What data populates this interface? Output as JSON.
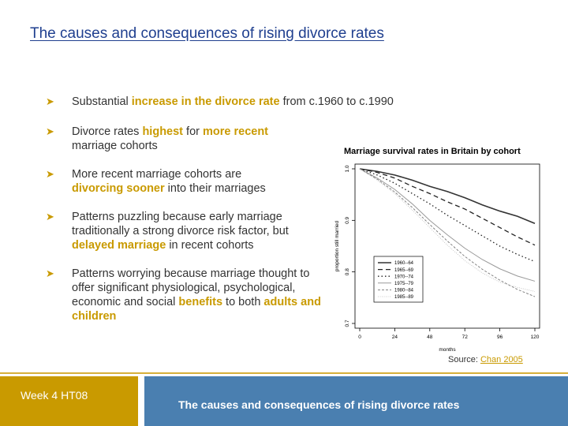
{
  "slide": {
    "title": "The causes and consequences of rising divorce rates"
  },
  "bullets": [
    {
      "icon": "arrow-bullet-icon",
      "parts": [
        {
          "text": "Substantial ",
          "hl": false
        },
        {
          "text": "increase in the divorce rate",
          "hl": true
        },
        {
          "text": " from c.1960 to c.1990",
          "hl": false
        }
      ]
    },
    {
      "icon": "arrow-bullet-icon",
      "parts": [
        {
          "text": "Divorce rates ",
          "hl": false
        },
        {
          "text": "highest",
          "hl": true
        },
        {
          "text": " for ",
          "hl": false
        },
        {
          "text": "more recent",
          "hl": true
        },
        {
          "text": " marriage cohorts",
          "hl": false
        }
      ]
    },
    {
      "icon": "arrow-bullet-icon",
      "parts": [
        {
          "text": "More recent marriage cohorts are ",
          "hl": false
        },
        {
          "text": "divorcing sooner",
          "hl": true
        },
        {
          "text": " into their marriages",
          "hl": false
        }
      ]
    },
    {
      "icon": "arrow-bullet-icon",
      "parts": [
        {
          "text": "Patterns puzzling because early marriage traditionally a strong divorce risk factor, but ",
          "hl": false
        },
        {
          "text": "delayed marriage",
          "hl": true
        },
        {
          "text": " in recent cohorts",
          "hl": false
        }
      ]
    },
    {
      "icon": "arrow-bullet-icon",
      "parts": [
        {
          "text": "Patterns worrying because marriage thought to offer significant physiological, psychological, economic and social ",
          "hl": false
        },
        {
          "text": "benefits",
          "hl": true
        },
        {
          "text": " to both ",
          "hl": false
        },
        {
          "text": "adults and children",
          "hl": true
        }
      ]
    }
  ],
  "chart_caption": "Marriage survival rates in Britain by cohort",
  "chart_data": {
    "type": "line",
    "xlabel": "months",
    "ylabel": "proportion still married",
    "xlim": [
      0,
      120
    ],
    "ylim": [
      0.7,
      1.0
    ],
    "xticks": [
      0,
      24,
      48,
      72,
      96,
      120
    ],
    "yticks": [
      0.7,
      0.8,
      0.9,
      1.0
    ],
    "grid": false,
    "legend_position": "bottom-left",
    "x": [
      0,
      12,
      24,
      36,
      48,
      60,
      72,
      84,
      96,
      108,
      120
    ],
    "series": [
      {
        "name": "1960--64",
        "dash": "solid-thick",
        "values": [
          1.0,
          0.995,
          0.988,
          0.978,
          0.966,
          0.956,
          0.944,
          0.93,
          0.918,
          0.908,
          0.894
        ]
      },
      {
        "name": "1965--69",
        "dash": "dashed",
        "values": [
          1.0,
          0.993,
          0.982,
          0.966,
          0.952,
          0.936,
          0.922,
          0.904,
          0.886,
          0.868,
          0.852
        ]
      },
      {
        "name": "1970--74",
        "dash": "dotted",
        "values": [
          1.0,
          0.988,
          0.972,
          0.952,
          0.932,
          0.91,
          0.89,
          0.87,
          0.85,
          0.834,
          0.82
        ]
      },
      {
        "name": "1975--79",
        "dash": "solid-thin",
        "values": [
          1.0,
          0.982,
          0.96,
          0.932,
          0.9,
          0.872,
          0.846,
          0.824,
          0.806,
          0.792,
          0.782
        ]
      },
      {
        "name": "1980--84",
        "dash": "short-dash",
        "values": [
          1.0,
          0.98,
          0.955,
          0.925,
          0.892,
          0.86,
          0.83,
          0.805,
          0.784,
          0.766,
          0.752
        ]
      },
      {
        "name": "1985--89",
        "dash": "faint",
        "values": [
          1.0,
          0.978,
          0.952,
          0.92,
          0.886,
          0.852,
          0.822,
          0.798,
          0.78,
          0.77,
          0.762
        ]
      }
    ]
  },
  "source": {
    "prefix": "Source: ",
    "link_text": "Chan 2005"
  },
  "footer": {
    "week": "Week 4 HT08",
    "title": "The causes and consequences of rising divorce rates"
  },
  "colors": {
    "accent": "#c99a00",
    "title_blue": "#1f3f8f",
    "footer_blue": "#4a7fb0"
  }
}
